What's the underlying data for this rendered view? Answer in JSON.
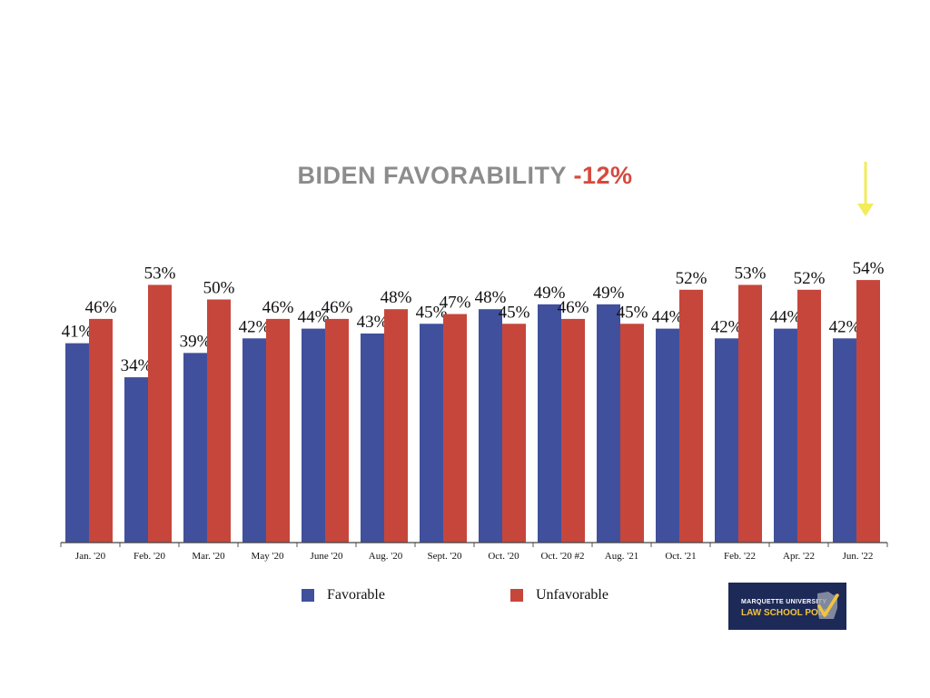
{
  "title": {
    "main": "BIDEN FAVORABILITY",
    "delta": "-12%"
  },
  "colors": {
    "favorable": "#41509c",
    "unfavorable": "#c6463b",
    "title_gray": "#8c8c8c",
    "title_red": "#d64a3e",
    "arrow": "#f2ec5a"
  },
  "chart_data": {
    "type": "bar",
    "title": "BIDEN FAVORABILITY -12%",
    "categories": [
      "Jan. '20",
      "Feb. '20",
      "Mar. '20",
      "May '20",
      "June '20",
      "Aug. '20",
      "Sept. '20",
      "Oct. '20",
      "Oct. '20 #2",
      "Aug. '21",
      "Oct. '21",
      "Feb. '22",
      "Apr. '22",
      "Jun. '22"
    ],
    "series": [
      {
        "name": "Favorable",
        "values": [
          41,
          34,
          39,
          42,
          44,
          43,
          45,
          48,
          49,
          49,
          44,
          42,
          44,
          42
        ]
      },
      {
        "name": "Unfavorable",
        "values": [
          46,
          53,
          50,
          46,
          46,
          48,
          47,
          45,
          46,
          45,
          52,
          53,
          52,
          54
        ]
      }
    ],
    "data_labels": [
      [
        "41%",
        "34%",
        "39%",
        "42%",
        "44%",
        "43%",
        "45%",
        "48%",
        "49%",
        "49%",
        "44%",
        "42%",
        "44%",
        "42%"
      ],
      [
        "46%",
        "53%",
        "50%",
        "46%",
        "46%",
        "48%",
        "47%",
        "45%",
        "46%",
        "45%",
        "52%",
        "53%",
        "52%",
        "54%"
      ]
    ],
    "ylim": [
      0,
      100
    ],
    "xlabel": "",
    "ylabel": "",
    "grid": false,
    "legend_position": "bottom",
    "highlighted_category": "Jun. '22"
  },
  "legend": {
    "favorable": "Favorable",
    "unfavorable": "Unfavorable"
  },
  "logo": {
    "line1": "MARQUETTE UNIVERSITY",
    "line2": "LAW SCHOOL POLL"
  }
}
